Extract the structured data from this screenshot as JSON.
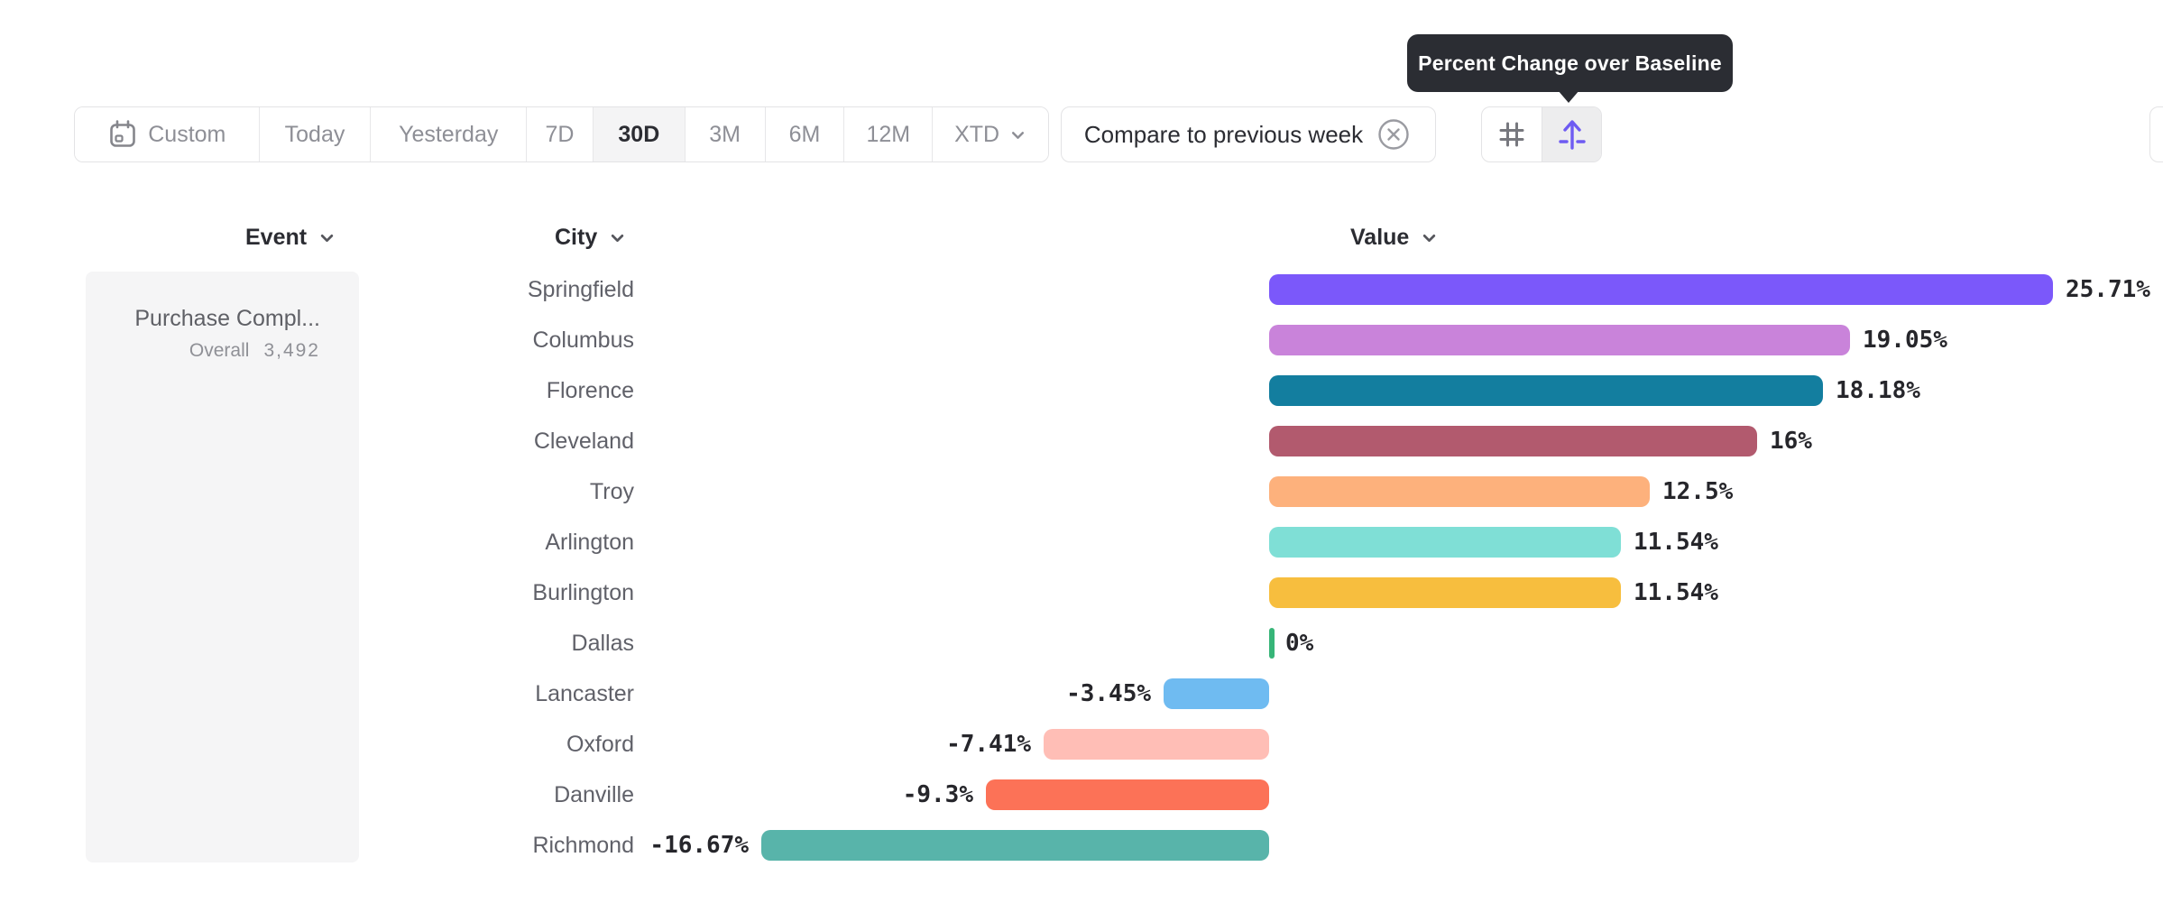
{
  "tooltip": {
    "text": "Percent Change over Baseline"
  },
  "toolbar": {
    "date_ranges": [
      {
        "label": "Custom",
        "icon": "calendar",
        "selected": false,
        "chevron": false
      },
      {
        "label": "Today",
        "icon": null,
        "selected": false,
        "chevron": false
      },
      {
        "label": "Yesterday",
        "icon": null,
        "selected": false,
        "chevron": false
      },
      {
        "label": "7D",
        "icon": null,
        "selected": false,
        "chevron": false
      },
      {
        "label": "30D",
        "icon": null,
        "selected": true,
        "chevron": false
      },
      {
        "label": "3M",
        "icon": null,
        "selected": false,
        "chevron": false
      },
      {
        "label": "6M",
        "icon": null,
        "selected": false,
        "chevron": false
      },
      {
        "label": "12M",
        "icon": null,
        "selected": false,
        "chevron": false
      },
      {
        "label": "XTD",
        "icon": null,
        "selected": false,
        "chevron": true
      }
    ],
    "compare": {
      "label": "Compare to previous week",
      "icon": "circle-x-icon"
    },
    "view_toggle": [
      {
        "icon": "grid-icon",
        "selected": false
      },
      {
        "icon": "percent-change-icon",
        "selected": true,
        "accent": "#6e5bf2"
      }
    ]
  },
  "columns": [
    {
      "label": "Event"
    },
    {
      "label": "City"
    },
    {
      "label": "Value"
    }
  ],
  "event_card": {
    "title": "Purchase Compl...",
    "overall_label": "Overall",
    "overall_value": "3,492"
  },
  "chart_data": {
    "type": "bar",
    "orientation": "horizontal",
    "title": "Percent Change over Baseline",
    "unit": "%",
    "baseline": 0,
    "categories": [
      "Springfield",
      "Columbus",
      "Florence",
      "Cleveland",
      "Troy",
      "Arlington",
      "Burlington",
      "Dallas",
      "Lancaster",
      "Oxford",
      "Danville",
      "Richmond"
    ],
    "values": [
      25.71,
      19.05,
      18.18,
      16,
      12.5,
      11.54,
      11.54,
      0,
      -3.45,
      -7.41,
      -9.3,
      -16.67
    ],
    "labels": [
      "25.71%",
      "19.05%",
      "18.18%",
      "16%",
      "12.5%",
      "11.54%",
      "11.54%",
      "0%",
      "-3.45%",
      "-7.41%",
      "-9.3%",
      "-16.67%"
    ],
    "colors": [
      "#7b58fa",
      "#c983da",
      "#137e9f",
      "#b25a6e",
      "#fdb17c",
      "#7fdfd6",
      "#f7be3e",
      "#37b578",
      "#6fbbf1",
      "#ffbeb6",
      "#fc7257",
      "#58b4aa"
    ],
    "zero_color": "#37b578"
  }
}
